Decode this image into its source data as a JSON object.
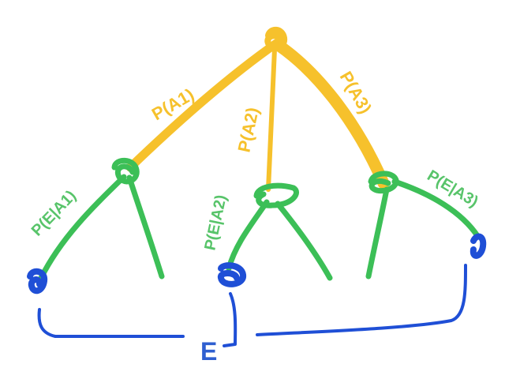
{
  "diagram": {
    "branch_labels": {
      "a1": "P(A1)",
      "a2": "P(A2)",
      "a3": "P(A3)"
    },
    "conditional_labels": {
      "e_given_a1": "P(E|A1)",
      "e_given_a2": "P(E|A2)",
      "e_given_a3": "P(E|A3)"
    },
    "event_label": "E",
    "colors": {
      "root_branches": "#f6c12c",
      "child_branches": "#3cbf57",
      "event_outcome": "#1f4fd6",
      "event_label": "#2f5fd0"
    }
  }
}
